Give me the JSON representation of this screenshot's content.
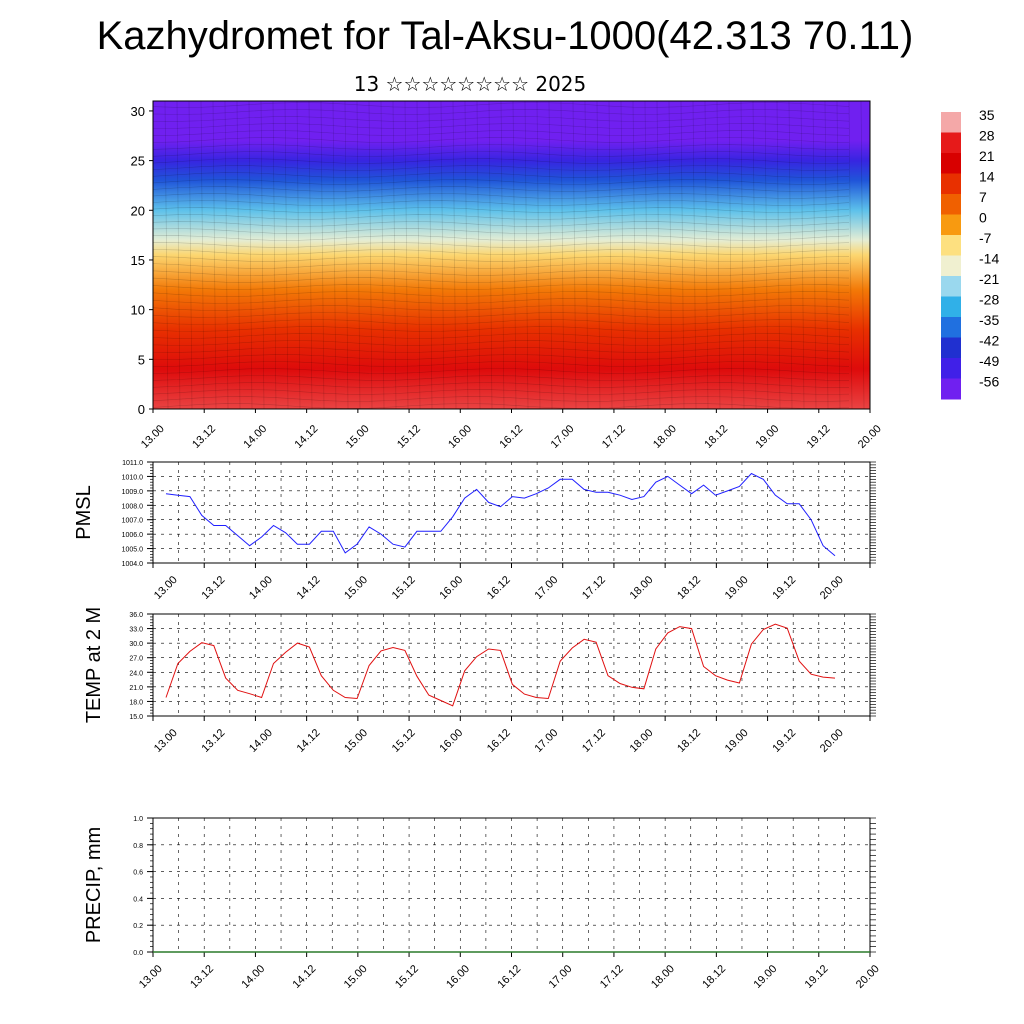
{
  "title": "Kazhydromet for Tal-Aksu-1000(42.313 70.11)",
  "subtitle": "13 ☆☆☆☆☆☆☆☆ 2025",
  "colors": {
    "pmsl_line": "#1f1fff",
    "temp_line": "#e01010",
    "precip_line": "#2a7a2a"
  },
  "chart_data": [
    {
      "type": "heatmap",
      "name": "temperature-wind-cross-section",
      "x_ticks": [
        "13.00",
        "13.12",
        "14.00",
        "14.12",
        "15.00",
        "15.12",
        "16.00",
        "16.12",
        "17.00",
        "17.12",
        "18.00",
        "18.12",
        "19.00",
        "19.12",
        "20.00"
      ],
      "y_ticks": [
        "0",
        "5",
        "10",
        "15",
        "20",
        "25",
        "30"
      ],
      "ylim": [
        0,
        31
      ],
      "legend_values": [
        "35",
        "28",
        "21",
        "14",
        "7",
        "0",
        "-7",
        "-14",
        "-21",
        "-28",
        "-35",
        "-42",
        "-49",
        "-56"
      ],
      "legend_colors": [
        "#f4a8a8",
        "#e61a1a",
        "#d80000",
        "#e83000",
        "#f06000",
        "#f89a10",
        "#fde080",
        "#f0f0d0",
        "#9ad8ee",
        "#30b0e8",
        "#2070e0",
        "#2030d0",
        "#4020e8",
        "#7020f0"
      ],
      "legend_position": "right",
      "vertical_profile": [
        {
          "level": 0,
          "value": 30
        },
        {
          "level": 4,
          "value": 24
        },
        {
          "level": 8,
          "value": 14
        },
        {
          "level": 12,
          "value": 4
        },
        {
          "level": 15.5,
          "value": -6
        },
        {
          "level": 17,
          "value": -15
        },
        {
          "level": 20,
          "value": -25
        },
        {
          "level": 23,
          "value": -38
        },
        {
          "level": 25,
          "value": -47
        },
        {
          "level": 27,
          "value": -56
        },
        {
          "level": 31,
          "value": -58
        }
      ]
    },
    {
      "type": "line",
      "name": "pmsl",
      "ylabel": "PMSL",
      "y_ticks": [
        "1004.0",
        "1005.0",
        "1006.0",
        "1007.0",
        "1008.0",
        "1009.0",
        "1010.0",
        "1011.0"
      ],
      "ylim": [
        1004,
        1011
      ],
      "x_ticks": [
        "13.00",
        "13.12",
        "14.00",
        "14.12",
        "15.00",
        "15.12",
        "16.00",
        "16.12",
        "17.00",
        "17.12",
        "18.00",
        "18.12",
        "19.00",
        "19.12",
        "20.00"
      ],
      "grid": true,
      "x": [
        0,
        3,
        6,
        9,
        12,
        15,
        18,
        21,
        24,
        27,
        30,
        33,
        36,
        39,
        42,
        45,
        48,
        51,
        54,
        57,
        60,
        63,
        66,
        69,
        72,
        75,
        78,
        81,
        84,
        87,
        90,
        93,
        96,
        99,
        102,
        105,
        108,
        111,
        114,
        117,
        120,
        123,
        126,
        129,
        132,
        135,
        138,
        141,
        144,
        147,
        150,
        153,
        156,
        159,
        162,
        165,
        168
      ],
      "values": [
        1008.8,
        1008.7,
        1008.6,
        1007.3,
        1006.6,
        1006.6,
        1005.9,
        1005.2,
        1005.8,
        1006.6,
        1006.1,
        1005.3,
        1005.3,
        1006.2,
        1006.2,
        1004.7,
        1005.3,
        1006.5,
        1006.0,
        1005.3,
        1005.1,
        1006.2,
        1006.2,
        1006.2,
        1007.2,
        1008.5,
        1009.1,
        1008.2,
        1007.9,
        1008.6,
        1008.5,
        1008.8,
        1009.2,
        1009.8,
        1009.8,
        1009.1,
        1008.9,
        1008.9,
        1008.7,
        1008.4,
        1008.6,
        1009.6,
        1010.0,
        1009.4,
        1008.8,
        1009.4,
        1008.7,
        1009.0,
        1009.3,
        1010.2,
        1009.8,
        1008.7,
        1008.1,
        1008.1,
        1007.0,
        1005.2,
        1004.5
      ]
    },
    {
      "type": "line",
      "name": "temp-2m",
      "ylabel": "TEMP at 2 M",
      "y_ticks": [
        "15.0",
        "18.0",
        "21.0",
        "24.0",
        "27.0",
        "30.0",
        "33.0",
        "36.0"
      ],
      "ylim": [
        15,
        36
      ],
      "x_ticks": [
        "13.00",
        "13.12",
        "14.00",
        "14.12",
        "15.00",
        "15.12",
        "16.00",
        "16.12",
        "17.00",
        "17.12",
        "18.00",
        "18.12",
        "19.00",
        "19.12",
        "20.00"
      ],
      "grid": true,
      "x": [
        0,
        3,
        6,
        9,
        12,
        15,
        18,
        21,
        24,
        27,
        30,
        33,
        36,
        39,
        42,
        45,
        48,
        51,
        54,
        57,
        60,
        63,
        66,
        69,
        72,
        75,
        78,
        81,
        84,
        87,
        90,
        93,
        96,
        99,
        102,
        105,
        108,
        111,
        114,
        117,
        120,
        123,
        126,
        129,
        132,
        135,
        138,
        141,
        144,
        147,
        150,
        153,
        156,
        159,
        162,
        165,
        168
      ],
      "values": [
        18.8,
        25.8,
        28.3,
        30.1,
        29.5,
        22.8,
        20.3,
        19.6,
        18.8,
        25.8,
        28.1,
        30.0,
        29.2,
        23.3,
        20.3,
        18.8,
        18.6,
        25.4,
        28.4,
        29.1,
        28.5,
        23.2,
        19.3,
        18.2,
        17.1,
        24.3,
        27.2,
        28.8,
        28.5,
        21.5,
        19.5,
        18.8,
        18.6,
        26.3,
        29.0,
        30.8,
        30.2,
        23.3,
        21.7,
        20.9,
        20.6,
        28.8,
        32.1,
        33.4,
        33.0,
        25.2,
        23.3,
        22.4,
        21.8,
        29.8,
        32.8,
        33.9,
        33.1,
        26.3,
        23.6,
        23.0,
        22.8
      ]
    },
    {
      "type": "line",
      "name": "precip",
      "ylabel": "PRECIP, mm",
      "y_ticks": [
        "0.0",
        "0.2",
        "0.4",
        "0.6",
        "0.8",
        "1.0"
      ],
      "ylim": [
        0,
        1
      ],
      "x_ticks": [
        "13.00",
        "13.12",
        "14.00",
        "14.12",
        "15.00",
        "15.12",
        "16.00",
        "16.12",
        "17.00",
        "17.12",
        "18.00",
        "18.12",
        "19.00",
        "19.12",
        "20.00"
      ],
      "grid": true,
      "x": [
        0,
        168
      ],
      "values": [
        0,
        0
      ]
    }
  ]
}
